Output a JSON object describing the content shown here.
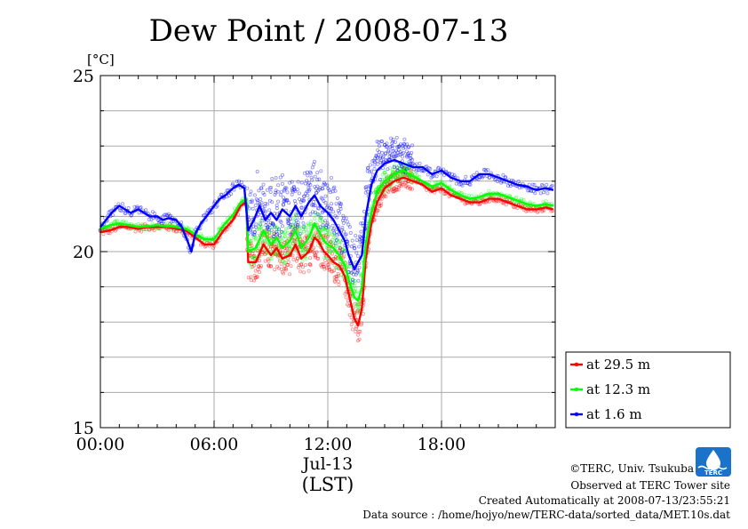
{
  "chart_data": {
    "type": "scatter",
    "title": "Dew Point / 2008-07-13",
    "ylabel": "[°C]",
    "xlabel_date": "Jul-13",
    "xlabel_zone": "(LST)",
    "ylim": [
      15,
      25
    ],
    "yticks": [
      15,
      20,
      25
    ],
    "xlim_hours": [
      0,
      24
    ],
    "xticks": [
      {
        "hour": 0,
        "label": "00:00"
      },
      {
        "hour": 6,
        "label": "06:00"
      },
      {
        "hour": 12,
        "label": "12:00"
      },
      {
        "hour": 18,
        "label": "18:00"
      }
    ],
    "grid": true,
    "legend_position": "lower-right-outside",
    "series": [
      {
        "name": "at 29.5 m",
        "color": "#ff0000",
        "points": [
          [
            0.0,
            20.55
          ],
          [
            0.5,
            20.6
          ],
          [
            1.0,
            20.7
          ],
          [
            1.5,
            20.7
          ],
          [
            2.0,
            20.65
          ],
          [
            2.5,
            20.7
          ],
          [
            3.0,
            20.7
          ],
          [
            3.5,
            20.7
          ],
          [
            4.0,
            20.65
          ],
          [
            4.5,
            20.6
          ],
          [
            5.0,
            20.4
          ],
          [
            5.5,
            20.2
          ],
          [
            6.0,
            20.2
          ],
          [
            6.5,
            20.6
          ],
          [
            7.0,
            20.9
          ],
          [
            7.4,
            21.3
          ],
          [
            7.7,
            21.4
          ],
          [
            7.8,
            19.7
          ],
          [
            8.2,
            19.7
          ],
          [
            8.6,
            20.2
          ],
          [
            9.0,
            19.9
          ],
          [
            9.3,
            20.1
          ],
          [
            9.6,
            19.8
          ],
          [
            10.0,
            19.9
          ],
          [
            10.3,
            20.2
          ],
          [
            10.6,
            19.8
          ],
          [
            11.0,
            20.0
          ],
          [
            11.3,
            20.4
          ],
          [
            11.5,
            20.3
          ],
          [
            11.8,
            20.0
          ],
          [
            12.0,
            19.9
          ],
          [
            12.3,
            19.7
          ],
          [
            12.6,
            19.6
          ],
          [
            12.9,
            19.3
          ],
          [
            13.1,
            18.8
          ],
          [
            13.4,
            18.1
          ],
          [
            13.6,
            17.9
          ],
          [
            13.8,
            18.4
          ],
          [
            14.0,
            19.8
          ],
          [
            14.3,
            20.8
          ],
          [
            14.6,
            21.4
          ],
          [
            15.0,
            21.8
          ],
          [
            15.5,
            22.0
          ],
          [
            16.0,
            22.1
          ],
          [
            16.5,
            22.0
          ],
          [
            17.0,
            21.9
          ],
          [
            17.5,
            21.7
          ],
          [
            18.0,
            21.8
          ],
          [
            18.5,
            21.6
          ],
          [
            19.0,
            21.5
          ],
          [
            19.5,
            21.4
          ],
          [
            20.0,
            21.4
          ],
          [
            20.5,
            21.5
          ],
          [
            21.0,
            21.5
          ],
          [
            21.5,
            21.4
          ],
          [
            22.0,
            21.3
          ],
          [
            22.5,
            21.2
          ],
          [
            23.0,
            21.2
          ],
          [
            23.5,
            21.25
          ],
          [
            23.9,
            21.2
          ]
        ]
      },
      {
        "name": "at 12.3 m",
        "color": "#00ff00",
        "points": [
          [
            0.0,
            20.65
          ],
          [
            0.5,
            20.75
          ],
          [
            1.0,
            20.8
          ],
          [
            1.5,
            20.75
          ],
          [
            2.0,
            20.7
          ],
          [
            2.5,
            20.72
          ],
          [
            3.0,
            20.75
          ],
          [
            3.5,
            20.72
          ],
          [
            4.0,
            20.7
          ],
          [
            4.5,
            20.65
          ],
          [
            5.0,
            20.5
          ],
          [
            5.5,
            20.35
          ],
          [
            6.0,
            20.35
          ],
          [
            6.5,
            20.75
          ],
          [
            7.0,
            21.05
          ],
          [
            7.4,
            21.4
          ],
          [
            7.7,
            21.5
          ],
          [
            7.8,
            20.0
          ],
          [
            8.2,
            20.1
          ],
          [
            8.6,
            20.6
          ],
          [
            9.0,
            20.2
          ],
          [
            9.3,
            20.4
          ],
          [
            9.6,
            20.1
          ],
          [
            10.0,
            20.3
          ],
          [
            10.3,
            20.6
          ],
          [
            10.6,
            20.1
          ],
          [
            11.0,
            20.4
          ],
          [
            11.3,
            20.8
          ],
          [
            11.5,
            20.6
          ],
          [
            11.8,
            20.3
          ],
          [
            12.0,
            20.2
          ],
          [
            12.3,
            20.1
          ],
          [
            12.6,
            19.9
          ],
          [
            12.9,
            19.6
          ],
          [
            13.1,
            19.2
          ],
          [
            13.4,
            18.7
          ],
          [
            13.6,
            18.6
          ],
          [
            13.8,
            19.0
          ],
          [
            14.0,
            20.2
          ],
          [
            14.3,
            21.1
          ],
          [
            14.6,
            21.7
          ],
          [
            15.0,
            22.0
          ],
          [
            15.5,
            22.2
          ],
          [
            16.0,
            22.3
          ],
          [
            16.5,
            22.15
          ],
          [
            17.0,
            22.0
          ],
          [
            17.5,
            21.85
          ],
          [
            18.0,
            21.95
          ],
          [
            18.5,
            21.75
          ],
          [
            19.0,
            21.6
          ],
          [
            19.5,
            21.5
          ],
          [
            20.0,
            21.55
          ],
          [
            20.5,
            21.65
          ],
          [
            21.0,
            21.65
          ],
          [
            21.5,
            21.55
          ],
          [
            22.0,
            21.45
          ],
          [
            22.5,
            21.35
          ],
          [
            23.0,
            21.3
          ],
          [
            23.5,
            21.35
          ],
          [
            23.9,
            21.3
          ]
        ]
      },
      {
        "name": "at 1.6 m",
        "color": "#0000ff",
        "points": [
          [
            0.0,
            20.7
          ],
          [
            0.3,
            20.9
          ],
          [
            0.6,
            21.1
          ],
          [
            1.0,
            21.3
          ],
          [
            1.3,
            21.2
          ],
          [
            1.6,
            21.1
          ],
          [
            2.0,
            21.2
          ],
          [
            2.3,
            21.1
          ],
          [
            2.6,
            21.0
          ],
          [
            3.0,
            21.0
          ],
          [
            3.3,
            20.9
          ],
          [
            3.6,
            20.95
          ],
          [
            4.0,
            20.9
          ],
          [
            4.3,
            20.7
          ],
          [
            4.6,
            20.3
          ],
          [
            4.8,
            20.0
          ],
          [
            5.0,
            20.5
          ],
          [
            5.3,
            20.8
          ],
          [
            5.6,
            21.0
          ],
          [
            6.0,
            21.3
          ],
          [
            6.3,
            21.5
          ],
          [
            6.6,
            21.6
          ],
          [
            7.0,
            21.8
          ],
          [
            7.3,
            21.9
          ],
          [
            7.6,
            21.8
          ],
          [
            7.8,
            20.6
          ],
          [
            8.1,
            20.9
          ],
          [
            8.4,
            21.3
          ],
          [
            8.7,
            20.9
          ],
          [
            9.0,
            21.1
          ],
          [
            9.3,
            20.9
          ],
          [
            9.6,
            21.2
          ],
          [
            10.0,
            21.0
          ],
          [
            10.3,
            21.3
          ],
          [
            10.6,
            21.0
          ],
          [
            11.0,
            21.4
          ],
          [
            11.3,
            21.6
          ],
          [
            11.6,
            21.3
          ],
          [
            12.0,
            21.1
          ],
          [
            12.3,
            20.9
          ],
          [
            12.6,
            20.6
          ],
          [
            12.9,
            20.3
          ],
          [
            13.1,
            19.9
          ],
          [
            13.4,
            19.5
          ],
          [
            13.6,
            19.7
          ],
          [
            13.8,
            19.9
          ],
          [
            14.0,
            21.0
          ],
          [
            14.3,
            21.9
          ],
          [
            14.6,
            22.3
          ],
          [
            15.0,
            22.5
          ],
          [
            15.5,
            22.6
          ],
          [
            16.0,
            22.5
          ],
          [
            16.5,
            22.4
          ],
          [
            17.0,
            22.4
          ],
          [
            17.5,
            22.2
          ],
          [
            18.0,
            22.3
          ],
          [
            18.5,
            22.1
          ],
          [
            19.0,
            22.0
          ],
          [
            19.5,
            22.0
          ],
          [
            20.0,
            22.2
          ],
          [
            20.5,
            22.2
          ],
          [
            21.0,
            22.1
          ],
          [
            21.5,
            22.0
          ],
          [
            22.0,
            21.9
          ],
          [
            22.5,
            21.85
          ],
          [
            23.0,
            21.75
          ],
          [
            23.5,
            21.8
          ],
          [
            23.9,
            21.75
          ]
        ]
      }
    ]
  },
  "credits": {
    "copyright": "©TERC, Univ. Tsukuba",
    "observed": "Observed at TERC Tower site",
    "created": "Created Automatically at 2008-07-13/23:55:21",
    "source": "Data source : /home/hojyo/new/TERC-data/sorted_data/MET.10s.dat"
  },
  "logo": {
    "text": "TERC",
    "color": "#1a73c9"
  }
}
